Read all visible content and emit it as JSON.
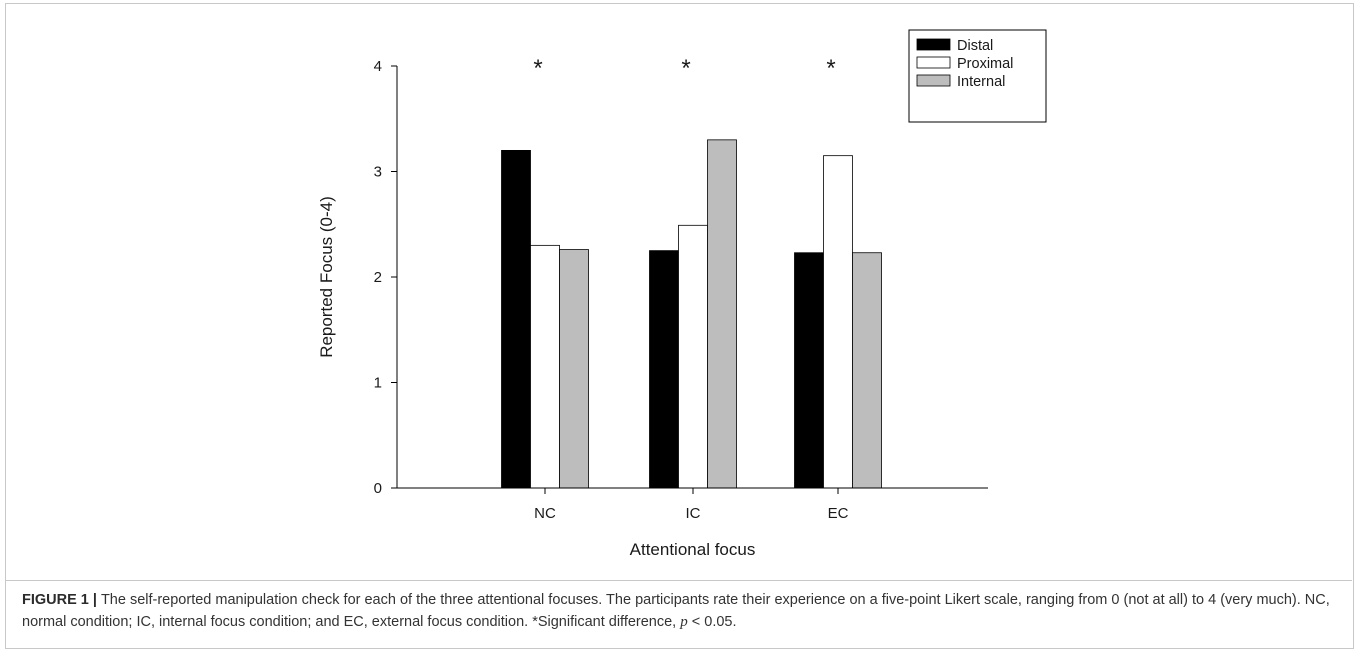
{
  "chart_data": {
    "type": "bar",
    "xlabel": "Attentional focus",
    "ylabel": "Reported Focus (0-4)",
    "categories": [
      "NC",
      "IC",
      "EC"
    ],
    "ylim": [
      0,
      4
    ],
    "yticks": [
      "0",
      "1",
      "2",
      "3",
      "4"
    ],
    "series": [
      {
        "name": "Distal",
        "values": [
          3.2,
          2.25,
          2.23
        ],
        "color": "#000000"
      },
      {
        "name": "Proximal",
        "values": [
          2.3,
          2.49,
          3.15
        ],
        "color": "#ffffff"
      },
      {
        "name": "Internal",
        "values": [
          2.26,
          3.3,
          2.23
        ],
        "color": "#bdbdbd"
      }
    ],
    "annotations": [
      "*",
      "*",
      "*"
    ],
    "legend_position": "top-right",
    "grid": false
  },
  "caption": {
    "label": "FIGURE 1",
    "separator": "|",
    "text_before": "The self-reported manipulation check for each of the three attentional focuses. The participants rate their experience on a five-point Likert scale, ranging from 0 (not at all) to 4 (very much). NC, normal condition; IC, internal focus condition; and EC, external focus condition. *Significant difference, ",
    "p_symbol": "p",
    "text_after": " < 0.05."
  }
}
